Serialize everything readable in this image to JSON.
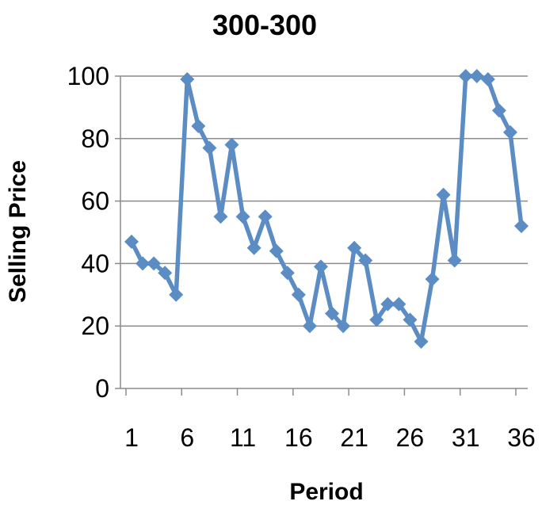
{
  "chart_data": {
    "type": "line",
    "title": "300-300",
    "xlabel": "Period",
    "ylabel": "Selling Price",
    "ylim": [
      0,
      100
    ],
    "xlim": [
      1,
      36
    ],
    "y_ticks": [
      0,
      20,
      40,
      60,
      80,
      100
    ],
    "x_tick_labels": [
      1,
      6,
      11,
      16,
      21,
      26,
      31,
      36
    ],
    "grid": "horizontal",
    "legend": "none",
    "series": [
      {
        "color": "#5B8CC4",
        "marker": "diamond",
        "x": [
          1,
          2,
          3,
          4,
          5,
          6,
          7,
          8,
          9,
          10,
          11,
          12,
          13,
          14,
          15,
          16,
          17,
          18,
          19,
          20,
          21,
          22,
          23,
          24,
          25,
          26,
          27,
          28,
          29,
          30,
          31,
          32,
          33,
          34,
          35,
          36
        ],
        "values": [
          47,
          40,
          40,
          37,
          30,
          99,
          84,
          77,
          55,
          78,
          55,
          45,
          55,
          44,
          37,
          30,
          20,
          39,
          24,
          20,
          45,
          41,
          22,
          27,
          27,
          22,
          15,
          35,
          62,
          41,
          100,
          100,
          99,
          89,
          82,
          52
        ]
      }
    ]
  }
}
